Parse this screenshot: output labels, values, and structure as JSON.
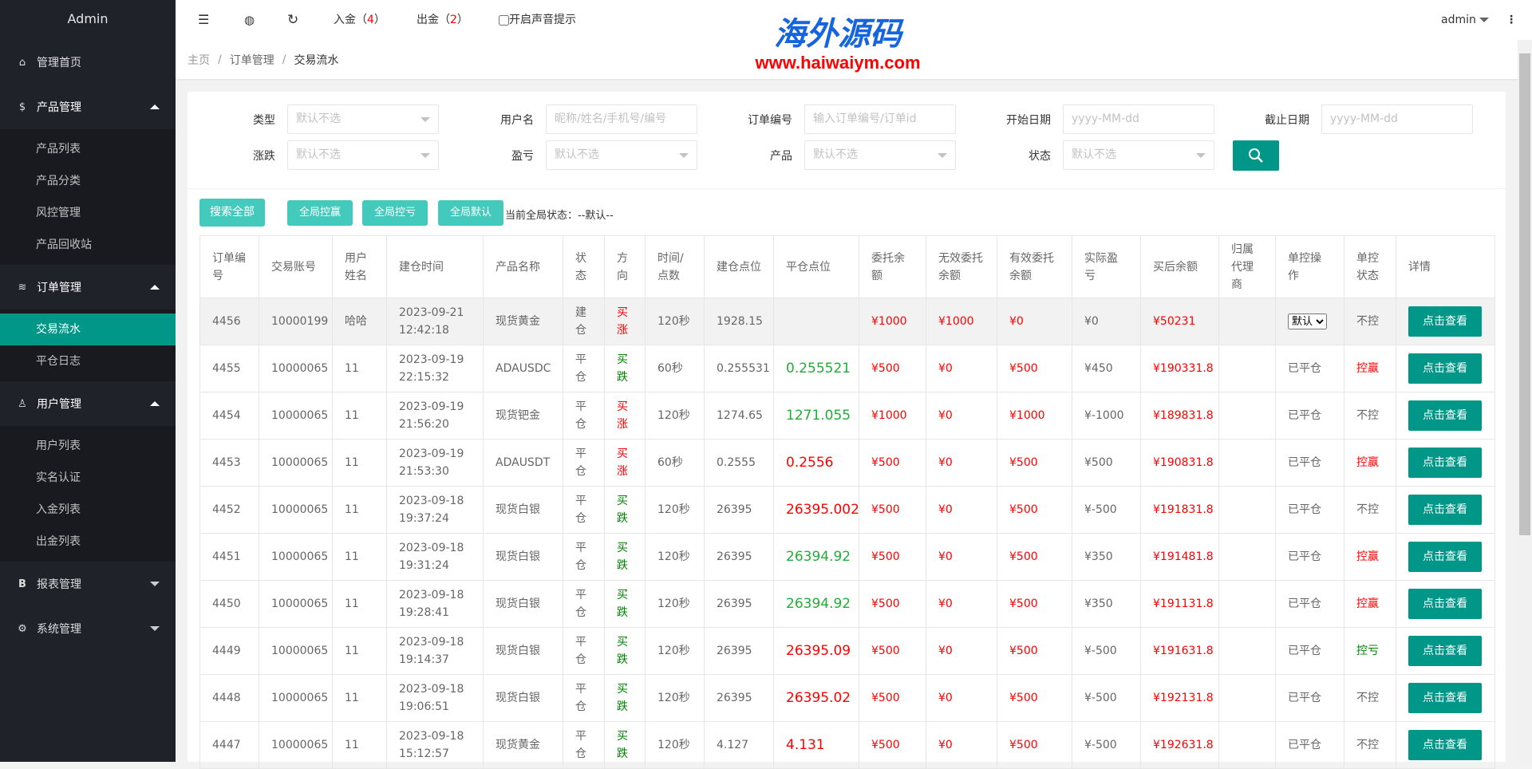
{
  "sidebar": {
    "logo": "Admin",
    "home": "管理首页",
    "groups": [
      {
        "label": "产品管理",
        "icon": "dollar-icon",
        "items": [
          "产品列表",
          "产品分类",
          "风控管理",
          "产品回收站"
        ]
      },
      {
        "label": "订单管理",
        "icon": "layers-icon",
        "items": [
          "交易流水",
          "平仓日志"
        ],
        "active": "交易流水"
      },
      {
        "label": "用户管理",
        "icon": "user-icon",
        "items": [
          "用户列表",
          "实名认证",
          "入金列表",
          "出金列表"
        ]
      },
      {
        "label": "报表管理",
        "icon": "bold-b-icon",
        "items": []
      },
      {
        "label": "系统管理",
        "icon": "gear-icon",
        "items": []
      }
    ]
  },
  "topbar": {
    "deposit_label": "入金（",
    "deposit_count": "4",
    "withdraw_label": "出金（",
    "withdraw_count": "2",
    "paren_close": "）",
    "sound_label": "开启声音提示",
    "user": "admin"
  },
  "breadcrumb": [
    "主页",
    "订单管理",
    "交易流水"
  ],
  "filters": {
    "row1": [
      {
        "label": "类型",
        "placeholder": "默认不选",
        "type": "select"
      },
      {
        "label": "用户名",
        "placeholder": "昵称/姓名/手机号/编号",
        "type": "input"
      },
      {
        "label": "订单编号",
        "placeholder": "输入订单编号/订单id",
        "type": "input"
      },
      {
        "label": "开始日期",
        "placeholder": "yyyy-MM-dd",
        "type": "input"
      },
      {
        "label": "截止日期",
        "placeholder": "yyyy-MM-dd",
        "type": "input"
      }
    ],
    "row2": [
      {
        "label": "涨跌",
        "placeholder": "默认不选",
        "type": "select"
      },
      {
        "label": "盈亏",
        "placeholder": "默认不选",
        "type": "select"
      },
      {
        "label": "产品",
        "placeholder": "默认不选",
        "type": "select"
      },
      {
        "label": "状态",
        "placeholder": "默认不选",
        "type": "select"
      }
    ]
  },
  "actions": {
    "search_all": "搜索全部",
    "ctrl_win": "全局控赢",
    "ctrl_loss": "全局控亏",
    "ctrl_default": "全局默认",
    "global_status": "当前全局状态：--默认--"
  },
  "watermark": {
    "cn": "海外源码",
    "url": "www.haiwaiym.com"
  },
  "colors": {
    "accent": "#009688",
    "light_accent": "#44c9bd",
    "profit_red": "#ff0000",
    "loss_green": "#22ac38"
  },
  "table": {
    "headers": [
      "订单编号",
      "交易账号",
      "用户姓名",
      "建仓时间",
      "产品名称",
      "状态",
      "方向",
      "时间/点数",
      "建仓点位",
      "平仓点位",
      "委托余额",
      "无效委托余额",
      "有效委托余额",
      "实际盈亏",
      "买后余额",
      "归属代理商",
      "单控操作",
      "单控状态",
      "详情"
    ],
    "view_label": "点击查看",
    "select_default": "默认",
    "rows": [
      {
        "id": "4456",
        "acct": "10000199",
        "name": "哈哈",
        "date": "2023-09-21",
        "time": "12:42:18",
        "product": "现货黄金",
        "status": "建仓",
        "dir": "买涨",
        "dur": "120秒",
        "open": "1928.15",
        "close": "",
        "close_color": "",
        "entrust": "¥1000",
        "invalid": "¥1000",
        "valid": "¥0",
        "pnl": "¥0",
        "after": "¥50231",
        "agent": "",
        "op": "select",
        "ctrl": "不控"
      },
      {
        "id": "4455",
        "acct": "10000065",
        "name": "11",
        "date": "2023-09-19",
        "time": "22:15:32",
        "product": "ADAUSDC",
        "status": "平仓",
        "dir": "买跌",
        "dur": "60秒",
        "open": "0.255531",
        "close": "0.255521",
        "close_color": "green",
        "entrust": "¥500",
        "invalid": "¥0",
        "valid": "¥500",
        "pnl": "¥450",
        "after": "¥190331.8",
        "agent": "",
        "op": "已平仓",
        "ctrl": "控赢"
      },
      {
        "id": "4454",
        "acct": "10000065",
        "name": "11",
        "date": "2023-09-19",
        "time": "21:56:20",
        "product": "现货钯金",
        "status": "平仓",
        "dir": "买涨",
        "dur": "120秒",
        "open": "1274.65",
        "close": "1271.055",
        "close_color": "green",
        "entrust": "¥1000",
        "invalid": "¥0",
        "valid": "¥1000",
        "pnl": "¥-1000",
        "after": "¥189831.8",
        "agent": "",
        "op": "已平仓",
        "ctrl": "不控"
      },
      {
        "id": "4453",
        "acct": "10000065",
        "name": "11",
        "date": "2023-09-19",
        "time": "21:53:30",
        "product": "ADAUSDT",
        "status": "平仓",
        "dir": "买涨",
        "dur": "60秒",
        "open": "0.2555",
        "close": "0.2556",
        "close_color": "red",
        "entrust": "¥500",
        "invalid": "¥0",
        "valid": "¥500",
        "pnl": "¥500",
        "after": "¥190831.8",
        "agent": "",
        "op": "已平仓",
        "ctrl": "控赢"
      },
      {
        "id": "4452",
        "acct": "10000065",
        "name": "11",
        "date": "2023-09-18",
        "time": "19:37:24",
        "product": "现货白银",
        "status": "平仓",
        "dir": "买跌",
        "dur": "120秒",
        "open": "26395",
        "close": "26395.002",
        "close_color": "red",
        "entrust": "¥500",
        "invalid": "¥0",
        "valid": "¥500",
        "pnl": "¥-500",
        "after": "¥191831.8",
        "agent": "",
        "op": "已平仓",
        "ctrl": "不控"
      },
      {
        "id": "4451",
        "acct": "10000065",
        "name": "11",
        "date": "2023-09-18",
        "time": "19:31:24",
        "product": "现货白银",
        "status": "平仓",
        "dir": "买跌",
        "dur": "120秒",
        "open": "26395",
        "close": "26394.92",
        "close_color": "green",
        "entrust": "¥500",
        "invalid": "¥0",
        "valid": "¥500",
        "pnl": "¥350",
        "after": "¥191481.8",
        "agent": "",
        "op": "已平仓",
        "ctrl": "控赢"
      },
      {
        "id": "4450",
        "acct": "10000065",
        "name": "11",
        "date": "2023-09-18",
        "time": "19:28:41",
        "product": "现货白银",
        "status": "平仓",
        "dir": "买跌",
        "dur": "120秒",
        "open": "26395",
        "close": "26394.92",
        "close_color": "green",
        "entrust": "¥500",
        "invalid": "¥0",
        "valid": "¥500",
        "pnl": "¥350",
        "after": "¥191131.8",
        "agent": "",
        "op": "已平仓",
        "ctrl": "控赢"
      },
      {
        "id": "4449",
        "acct": "10000065",
        "name": "11",
        "date": "2023-09-18",
        "time": "19:14:37",
        "product": "现货白银",
        "status": "平仓",
        "dir": "买跌",
        "dur": "120秒",
        "open": "26395",
        "close": "26395.09",
        "close_color": "red",
        "entrust": "¥500",
        "invalid": "¥0",
        "valid": "¥500",
        "pnl": "¥-500",
        "after": "¥191631.8",
        "agent": "",
        "op": "已平仓",
        "ctrl": "控亏"
      },
      {
        "id": "4448",
        "acct": "10000065",
        "name": "11",
        "date": "2023-09-18",
        "time": "19:06:51",
        "product": "现货白银",
        "status": "平仓",
        "dir": "买跌",
        "dur": "120秒",
        "open": "26395",
        "close": "26395.02",
        "close_color": "red",
        "entrust": "¥500",
        "invalid": "¥0",
        "valid": "¥500",
        "pnl": "¥-500",
        "after": "¥192131.8",
        "agent": "",
        "op": "已平仓",
        "ctrl": "不控"
      },
      {
        "id": "4447",
        "acct": "10000065",
        "name": "11",
        "date": "2023-09-18",
        "time": "15:12:57",
        "product": "现货黄金",
        "status": "平仓",
        "dir": "买跌",
        "dur": "120秒",
        "open": "4.127",
        "close": "4.131",
        "close_color": "red",
        "entrust": "¥500",
        "invalid": "¥0",
        "valid": "¥500",
        "pnl": "¥-500",
        "after": "¥192631.8",
        "agent": "",
        "op": "已平仓",
        "ctrl": "不控"
      }
    ]
  }
}
